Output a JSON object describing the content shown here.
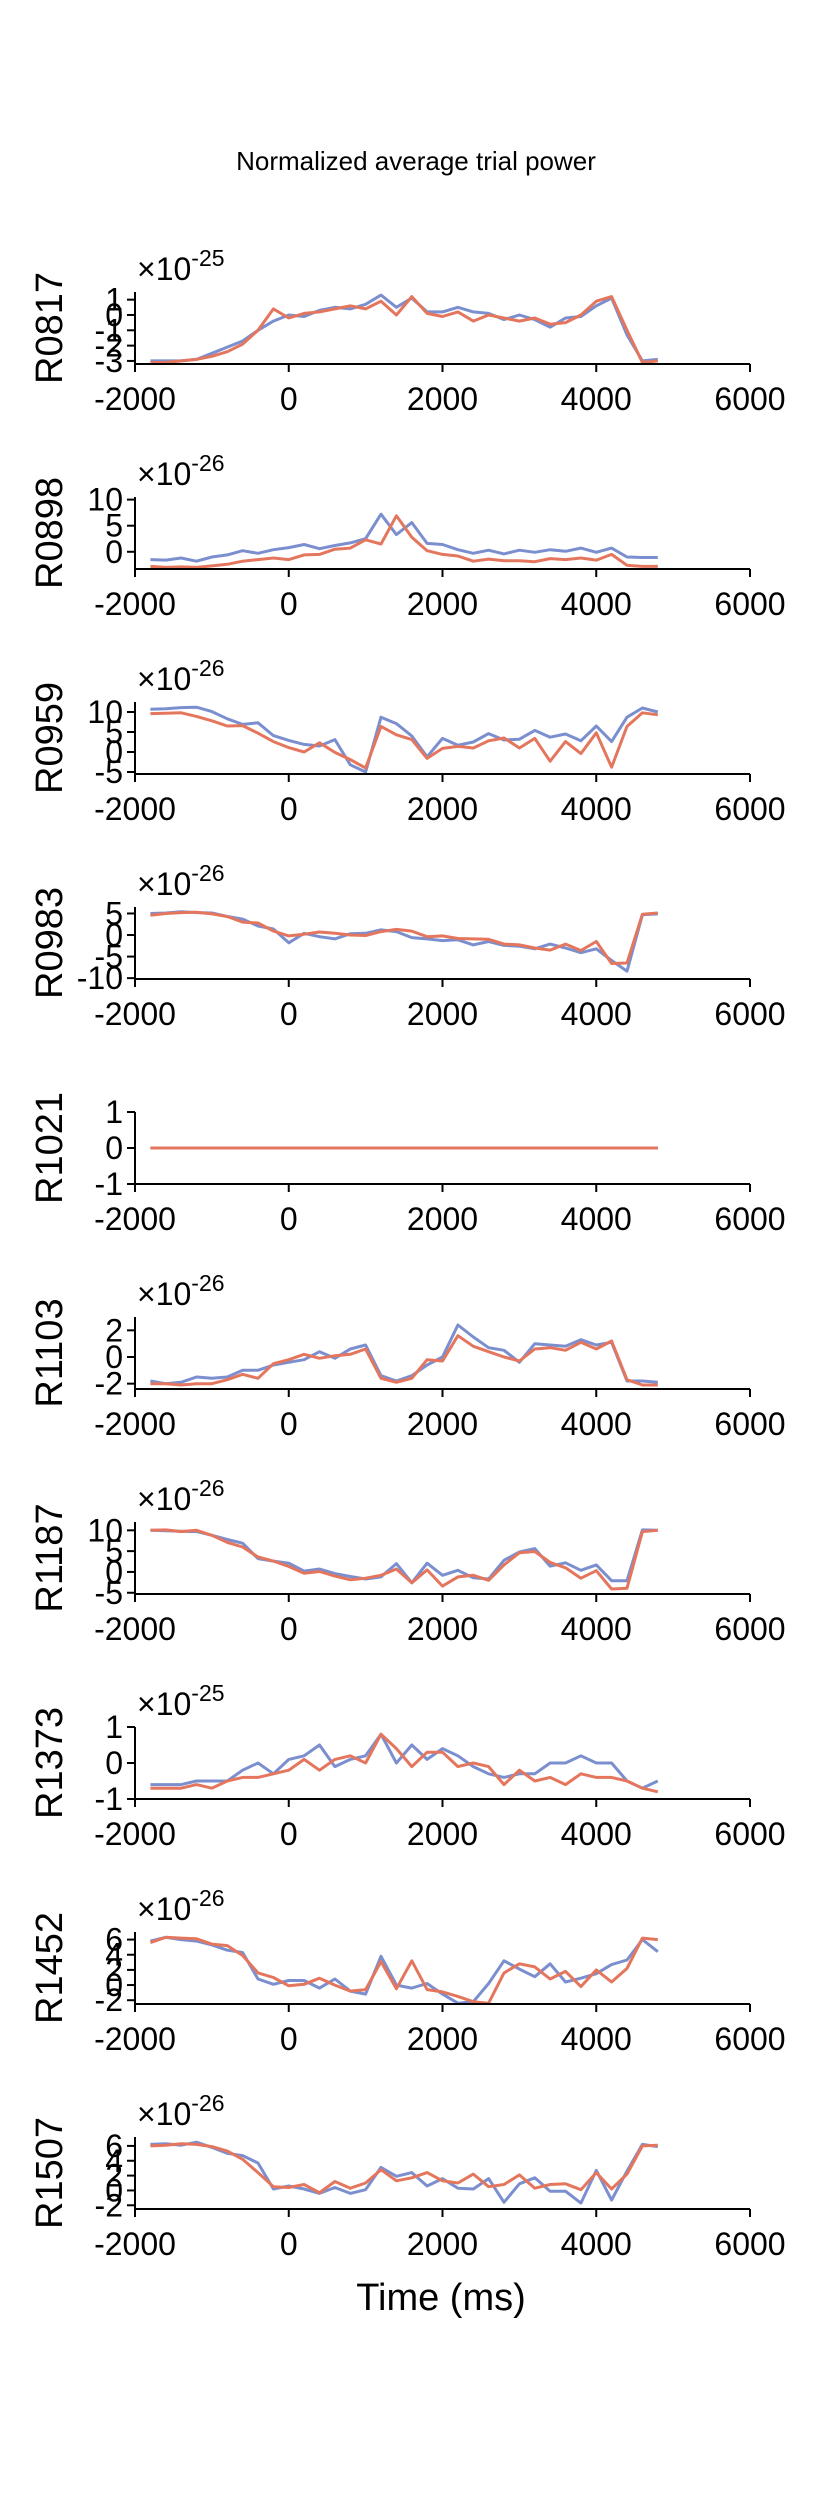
{
  "chart_data": {
    "type": "line",
    "title": "Normalized average trial power",
    "xlabel": "Time (ms)",
    "xlim": [
      -2000,
      6000
    ],
    "xticks": [
      "-2000",
      "0",
      "2000",
      "4000",
      "6000"
    ],
    "colors": {
      "series_a": "#7b8fcf",
      "series_b": "#e5765e"
    },
    "x": [
      -1800,
      -1600,
      -1400,
      -1200,
      -1000,
      -800,
      -600,
      -400,
      -200,
      0,
      200,
      400,
      600,
      800,
      1000,
      1200,
      1400,
      1600,
      1800,
      2000,
      2200,
      2400,
      2600,
      2800,
      3000,
      3200,
      3400,
      3600,
      3800,
      4000,
      4200,
      4400,
      4600,
      4800
    ],
    "panels": [
      {
        "ylabel": "R0817",
        "exponent": "-25",
        "ylim": [
          -3.2,
          1.5
        ],
        "yticks": [
          1,
          0,
          -1,
          -2,
          -3
        ],
        "series": [
          {
            "values": [
              -3.0,
              -3.0,
              -3.0,
              -2.9,
              -2.5,
              -2.1,
              -1.7,
              -1.0,
              -0.4,
              0.0,
              -0.1,
              0.3,
              0.5,
              0.4,
              0.7,
              1.3,
              0.5,
              1.1,
              0.2,
              0.2,
              0.5,
              0.2,
              0.1,
              -0.3,
              0.0,
              -0.3,
              -0.8,
              -0.2,
              -0.1,
              0.6,
              1.1,
              -1.3,
              -3.0,
              -2.9
            ]
          },
          {
            "values": [
              -3.1,
              -3.1,
              -3.0,
              -2.9,
              -2.7,
              -2.4,
              -1.9,
              -1.0,
              0.4,
              -0.2,
              0.1,
              0.2,
              0.4,
              0.6,
              0.4,
              0.9,
              0.0,
              1.2,
              0.1,
              -0.1,
              0.2,
              -0.4,
              0.0,
              -0.2,
              -0.4,
              -0.2,
              -0.6,
              -0.5,
              0.0,
              0.9,
              1.2,
              -1.0,
              -3.1,
              -3.0
            ]
          }
        ]
      },
      {
        "ylabel": "R0898",
        "exponent": "-26",
        "ylim": [
          -3.3,
          10.5
        ],
        "yticks": [
          10,
          5,
          0
        ],
        "series": [
          {
            "values": [
              -1.5,
              -1.6,
              -1.2,
              -1.8,
              -1.0,
              -0.6,
              0.2,
              -0.3,
              0.4,
              0.8,
              1.4,
              0.6,
              1.2,
              1.7,
              2.5,
              7.2,
              3.3,
              5.6,
              1.6,
              1.4,
              0.4,
              -0.3,
              0.3,
              -0.4,
              0.3,
              -0.1,
              0.4,
              0.1,
              0.7,
              -0.1,
              0.7,
              -1.0,
              -1.1,
              -1.1
            ]
          },
          {
            "values": [
              -2.8,
              -3.0,
              -2.9,
              -3.0,
              -2.7,
              -2.4,
              -1.8,
              -1.5,
              -1.2,
              -1.5,
              -0.6,
              -0.5,
              0.5,
              0.7,
              2.3,
              1.5,
              6.9,
              2.8,
              0.2,
              -0.5,
              -0.8,
              -1.8,
              -1.4,
              -1.7,
              -1.7,
              -1.9,
              -1.3,
              -1.5,
              -1.2,
              -1.6,
              -0.5,
              -2.6,
              -2.8,
              -2.8
            ]
          }
        ]
      },
      {
        "ylabel": "R0959",
        "exponent": "-26",
        "ylim": [
          -5.5,
          12.5
        ],
        "yticks": [
          10,
          5,
          0,
          -5
        ],
        "series": [
          {
            "values": [
              10.7,
              10.8,
              11.1,
              11.2,
              10.1,
              8.3,
              6.9,
              7.3,
              4.1,
              2.9,
              1.9,
              1.5,
              3.1,
              -3.2,
              -5.0,
              8.7,
              7.1,
              4.0,
              -1.2,
              3.4,
              1.7,
              2.5,
              4.6,
              3.0,
              3.2,
              5.4,
              3.7,
              4.5,
              2.8,
              6.5,
              2.6,
              8.7,
              11.0,
              10.0
            ]
          },
          {
            "values": [
              9.6,
              9.7,
              9.8,
              8.9,
              7.8,
              6.5,
              6.6,
              4.7,
              2.6,
              1.1,
              0.0,
              2.3,
              -0.1,
              -1.9,
              -4.0,
              6.4,
              4.3,
              3.1,
              -1.6,
              0.9,
              1.4,
              1.0,
              2.8,
              3.5,
              1.0,
              3.4,
              -2.3,
              2.6,
              -0.4,
              4.8,
              -3.8,
              6.4,
              9.8,
              9.3
            ]
          }
        ]
      },
      {
        "ylabel": "R0983",
        "exponent": "-26",
        "ylim": [
          -10.2,
          6.5
        ],
        "yticks": [
          5,
          0,
          -5,
          -10
        ],
        "series": [
          {
            "values": [
              5.0,
              5.1,
              5.4,
              5.2,
              5.1,
              4.3,
              3.7,
              2.1,
              1.4,
              -1.8,
              0.4,
              -0.4,
              -0.9,
              0.3,
              0.4,
              1.2,
              0.8,
              -0.6,
              -0.9,
              -1.3,
              -1.1,
              -2.3,
              -1.5,
              -2.4,
              -2.6,
              -3.2,
              -2.1,
              -3.0,
              -4.1,
              -3.2,
              -5.9,
              -8.4,
              4.7,
              4.9
            ]
          },
          {
            "values": [
              4.6,
              5.0,
              5.2,
              5.3,
              4.9,
              4.3,
              3.0,
              2.8,
              0.9,
              -0.2,
              0.2,
              0.7,
              0.4,
              0.0,
              -0.1,
              0.8,
              1.3,
              0.9,
              -0.4,
              -0.2,
              -0.8,
              -0.9,
              -1.0,
              -2.1,
              -2.3,
              -3.0,
              -3.5,
              -2.1,
              -3.6,
              -1.5,
              -6.6,
              -6.5,
              4.8,
              5.1
            ]
          }
        ]
      },
      {
        "ylabel": "R1021",
        "exponent": "",
        "ylim": [
          -1,
          1
        ],
        "yticks": [
          1,
          0,
          -1
        ],
        "series": [
          {
            "values": [
              0,
              0,
              0,
              0,
              0,
              0,
              0,
              0,
              0,
              0,
              0,
              0,
              0,
              0,
              0,
              0,
              0,
              0,
              0,
              0,
              0,
              0,
              0,
              0,
              0,
              0,
              0,
              0,
              0,
              0,
              0,
              0,
              0,
              0
            ]
          },
          {
            "values": [
              0,
              0,
              0,
              0,
              0,
              0,
              0,
              0,
              0,
              0,
              0,
              0,
              0,
              0,
              0,
              0,
              0,
              0,
              0,
              0,
              0,
              0,
              0,
              0,
              0,
              0,
              0,
              0,
              0,
              0,
              0,
              0,
              0,
              0
            ]
          }
        ]
      },
      {
        "ylabel": "R1103",
        "exponent": "-26",
        "ylim": [
          -2.4,
          3.0
        ],
        "yticks": [
          2,
          0,
          -2
        ],
        "series": [
          {
            "values": [
              -1.8,
              -2.0,
              -1.9,
              -1.5,
              -1.6,
              -1.5,
              -1.0,
              -1.0,
              -0.6,
              -0.4,
              -0.2,
              0.4,
              -0.1,
              0.6,
              0.9,
              -1.4,
              -1.8,
              -1.4,
              -0.6,
              0.0,
              2.4,
              1.5,
              0.7,
              0.5,
              -0.4,
              1.0,
              0.9,
              0.8,
              1.3,
              0.9,
              1.1,
              -1.8,
              -1.8,
              -1.9
            ]
          },
          {
            "values": [
              -2.0,
              -2.0,
              -2.1,
              -2.0,
              -2.0,
              -1.7,
              -1.3,
              -1.6,
              -0.5,
              -0.2,
              0.2,
              -0.1,
              0.1,
              0.2,
              0.6,
              -1.6,
              -1.9,
              -1.6,
              -0.2,
              -0.3,
              1.6,
              0.8,
              0.4,
              0.0,
              -0.3,
              0.6,
              0.7,
              0.5,
              1.1,
              0.6,
              1.2,
              -1.7,
              -2.1,
              -2.1
            ]
          }
        ]
      },
      {
        "ylabel": "R1187",
        "exponent": "-26",
        "ylim": [
          -5.3,
          12.0
        ],
        "yticks": [
          10,
          5,
          0,
          -5
        ],
        "series": [
          {
            "values": [
              10.0,
              9.9,
              9.8,
              9.7,
              8.8,
              7.8,
              6.9,
              3.2,
              2.6,
              2.1,
              0.2,
              0.7,
              -0.4,
              -1.1,
              -1.7,
              -1.2,
              2.0,
              -2.6,
              2.1,
              -0.8,
              0.4,
              -1.4,
              -1.7,
              2.8,
              4.8,
              5.6,
              1.4,
              2.2,
              0.4,
              1.7,
              -2.1,
              -2.1,
              10.1,
              10.0
            ]
          },
          {
            "values": [
              10.0,
              10.1,
              9.7,
              10.0,
              8.8,
              7.1,
              6.0,
              3.6,
              2.6,
              1.3,
              -0.3,
              0.1,
              -1.0,
              -1.9,
              -1.5,
              -0.8,
              0.7,
              -2.6,
              0.5,
              -3.4,
              -1.2,
              -0.8,
              -2.0,
              1.7,
              4.6,
              4.9,
              2.3,
              1.0,
              -1.5,
              0.3,
              -4.1,
              -3.9,
              9.7,
              10.0
            ]
          }
        ]
      },
      {
        "ylabel": "R1373",
        "exponent": "-25",
        "ylim": [
          -1.0,
          1.0
        ],
        "yticks": [
          1,
          0,
          -1
        ],
        "series": [
          {
            "values": [
              -0.6,
              -0.6,
              -0.6,
              -0.5,
              -0.5,
              -0.5,
              -0.2,
              0.0,
              -0.3,
              0.1,
              0.2,
              0.5,
              -0.1,
              0.1,
              0.2,
              0.8,
              0.0,
              0.5,
              0.1,
              0.4,
              0.2,
              -0.1,
              -0.3,
              -0.4,
              -0.3,
              -0.3,
              0.0,
              0.0,
              0.2,
              0.0,
              0.0,
              -0.5,
              -0.7,
              -0.5
            ]
          },
          {
            "values": [
              -0.7,
              -0.7,
              -0.7,
              -0.6,
              -0.7,
              -0.5,
              -0.4,
              -0.4,
              -0.3,
              -0.2,
              0.1,
              -0.2,
              0.1,
              0.2,
              0.0,
              0.8,
              0.4,
              -0.1,
              0.3,
              0.3,
              -0.1,
              0.0,
              -0.1,
              -0.6,
              -0.2,
              -0.5,
              -0.4,
              -0.6,
              -0.3,
              -0.4,
              -0.4,
              -0.5,
              -0.7,
              -0.8
            ]
          }
        ]
      },
      {
        "ylabel": "R1452",
        "exponent": "-26",
        "ylim": [
          -2.5,
          7.0
        ],
        "yticks": [
          6,
          4,
          2,
          0,
          -2
        ],
        "series": [
          {
            "values": [
              5.8,
              6.3,
              6.0,
              5.8,
              5.3,
              4.6,
              4.3,
              0.8,
              0.1,
              0.6,
              0.6,
              -0.4,
              0.8,
              -0.8,
              -1.2,
              3.8,
              0.0,
              -0.4,
              0.2,
              -1.2,
              -2.4,
              -2.2,
              0.2,
              3.2,
              2.1,
              1.1,
              2.8,
              0.4,
              0.9,
              1.5,
              2.7,
              3.3,
              6.0,
              4.4
            ]
          },
          {
            "values": [
              5.6,
              6.3,
              6.2,
              6.1,
              5.4,
              5.2,
              3.9,
              1.6,
              1.0,
              -0.1,
              0.1,
              0.9,
              0.0,
              -0.8,
              -0.6,
              3.1,
              -0.5,
              3.2,
              -0.6,
              -0.9,
              -1.5,
              -2.2,
              -2.4,
              1.6,
              2.8,
              2.4,
              0.8,
              1.8,
              -0.2,
              2.0,
              0.4,
              2.2,
              6.2,
              6.0
            ]
          }
        ]
      },
      {
        "ylabel": "R1507",
        "exponent": "-26",
        "ylim": [
          -2.5,
          7.2
        ],
        "yticks": [
          6,
          4,
          2,
          0,
          -2
        ],
        "series": [
          {
            "values": [
              6.2,
              6.3,
              6.1,
              6.5,
              5.8,
              5.0,
              4.7,
              3.7,
              0.2,
              0.6,
              0.2,
              -0.4,
              0.4,
              -0.4,
              0.1,
              3.1,
              1.9,
              2.4,
              0.6,
              1.6,
              0.3,
              0.2,
              1.6,
              -1.6,
              0.9,
              1.7,
              -0.1,
              -0.1,
              -1.7,
              2.7,
              -1.3,
              2.6,
              6.2,
              5.9
            ]
          },
          {
            "values": [
              6.0,
              6.1,
              6.3,
              6.2,
              5.9,
              5.3,
              4.2,
              2.4,
              0.5,
              0.4,
              0.8,
              -0.3,
              1.2,
              0.3,
              1.0,
              2.8,
              1.3,
              1.7,
              2.4,
              1.3,
              1.0,
              2.2,
              0.5,
              0.8,
              2.1,
              0.3,
              0.8,
              0.9,
              0.1,
              2.4,
              0.2,
              2.2,
              6.0,
              6.1
            ]
          }
        ]
      }
    ]
  }
}
